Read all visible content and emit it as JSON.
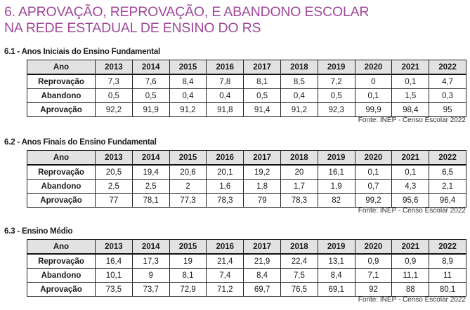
{
  "title": {
    "line1": "6. APROVAÇÃO, REPROVAÇÃO, E ABANDONO ESCOLAR",
    "line2": "NA REDE ESTADUAL DE ENSINO DO RS"
  },
  "colors": {
    "title": "#a0489a",
    "header_bg": "#e2e2e2",
    "border": "#222222"
  },
  "sections": [
    {
      "heading": "6.1 - Anos Iniciais do Ensino Fundamental",
      "header": [
        "Ano",
        "2013",
        "2014",
        "2015",
        "2016",
        "2017",
        "2018",
        "2019",
        "2020",
        "2021",
        "2022"
      ],
      "rows": [
        {
          "label": "Reprovação",
          "values": [
            "7,3",
            "7,6",
            "8,4",
            "7,8",
            "8,1",
            "8,5",
            "7,2",
            "0",
            "0,1",
            "4,7"
          ]
        },
        {
          "label": "Abandono",
          "values": [
            "0,5",
            "0,5",
            "0,4",
            "0,4",
            "0,5",
            "0,4",
            "0,5",
            "0,1",
            "1,5",
            "0,3"
          ]
        },
        {
          "label": "Aprovação",
          "values": [
            "92,2",
            "91,9",
            "91,2",
            "91,8",
            "91,4",
            "91,2",
            "92,3",
            "99,9",
            "98,4",
            "95"
          ]
        }
      ],
      "source": "Fonte: INEP - Censo Escolar 2022"
    },
    {
      "heading": "6.2 - Anos Finais do Ensino Fundamental",
      "header": [
        "Ano",
        "2013",
        "2014",
        "2015",
        "2016",
        "2017",
        "2018",
        "2019",
        "2020",
        "2021",
        "2022"
      ],
      "rows": [
        {
          "label": "Reprovação",
          "values": [
            "20,5",
            "19,4",
            "20,6",
            "20,1",
            "19,2",
            "20",
            "16,1",
            "0,1",
            "0,1",
            "6,5"
          ]
        },
        {
          "label": "Abandono",
          "values": [
            "2,5",
            "2,5",
            "2",
            "1,6",
            "1,8",
            "1,7",
            "1,9",
            "0,7",
            "4,3",
            "2,1"
          ]
        },
        {
          "label": "Aprovação",
          "values": [
            "77",
            "78,1",
            "77,3",
            "78,3",
            "79",
            "78,3",
            "82",
            "99,2",
            "95,6",
            "96,4"
          ]
        }
      ],
      "source": "Fonte: INEP - Censo Escolar 2022"
    },
    {
      "heading": "6.3 - Ensino Médio",
      "header": [
        "Ano",
        "2013",
        "2014",
        "2015",
        "2016",
        "2017",
        "2018",
        "2019",
        "2020",
        "2021",
        "2022"
      ],
      "rows": [
        {
          "label": "Reprovação",
          "values": [
            "16,4",
            "17,3",
            "19",
            "21,4",
            "21,9",
            "22,4",
            "13,1",
            "0,9",
            "0,9",
            "8,9"
          ]
        },
        {
          "label": "Abandono",
          "values": [
            "10,1",
            "9",
            "8,1",
            "7,4",
            "8,4",
            "7,5",
            "8,4",
            "7,1",
            "11,1",
            "11"
          ]
        },
        {
          "label": "Aprovação",
          "values": [
            "73,5",
            "73,7",
            "72,9",
            "71,2",
            "69,7",
            "76,5",
            "69,1",
            "92",
            "88",
            "80,1"
          ]
        }
      ],
      "source": "Fonte: INEP - Censo Escolar 2022"
    }
  ]
}
